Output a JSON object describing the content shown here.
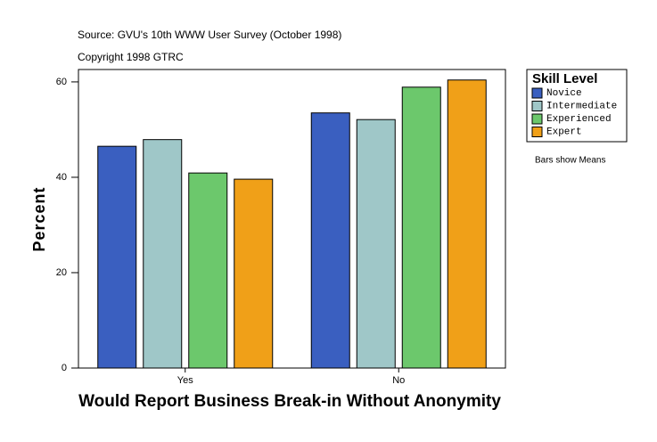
{
  "chart_data": {
    "type": "bar",
    "subtitle": "Source: GVU's 10th WWW User Survey (October 1998)",
    "copyright": "Copyright 1998 GTRC",
    "x_label": "Would Report Business Break-in Without Anonymity",
    "y_label": "Percent",
    "legend_title": "Skill Level",
    "annotation": "Bars show Means",
    "categories": [
      "Yes",
      "No"
    ],
    "series": [
      {
        "name": "Novice",
        "color": "#3a5fc0",
        "values": [
          46.5,
          53.5
        ]
      },
      {
        "name": "Intermediate",
        "color": "#9fc7c8",
        "values": [
          47.9,
          52.1
        ]
      },
      {
        "name": "Experienced",
        "color": "#6cc86c",
        "values": [
          40.9,
          58.9
        ]
      },
      {
        "name": "Expert",
        "color": "#f0a018",
        "values": [
          39.6,
          60.4
        ]
      }
    ],
    "ylim": [
      0,
      62.6
    ],
    "yticks": [
      0,
      20,
      40,
      60
    ],
    "grid": false
  }
}
